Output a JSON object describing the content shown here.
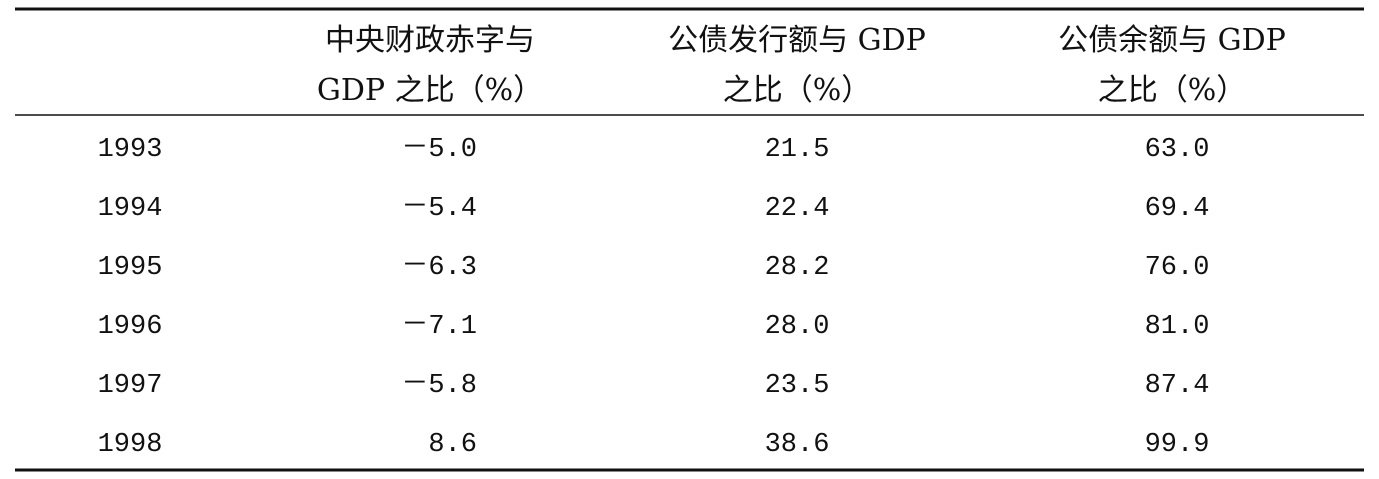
{
  "table": {
    "headers": [
      [
        "中央财政赤字与",
        "GDP 之比（%）"
      ],
      [
        "公债发行额与 GDP",
        "之比（%）"
      ],
      [
        "公债余额与 GDP",
        "之比（%）"
      ]
    ],
    "rows": [
      [
        "1993",
        "－5.0",
        "21.5",
        "63.0"
      ],
      [
        "1994",
        "－5.4",
        "22.4",
        "69.4"
      ],
      [
        "1995",
        "－6.3",
        "28.2",
        "76.0"
      ],
      [
        "1996",
        "－7.1",
        "28.0",
        "81.0"
      ],
      [
        "1997",
        "－5.8",
        "23.5",
        "87.4"
      ],
      [
        "1998",
        "8.6",
        "38.6",
        "99.9"
      ]
    ]
  }
}
